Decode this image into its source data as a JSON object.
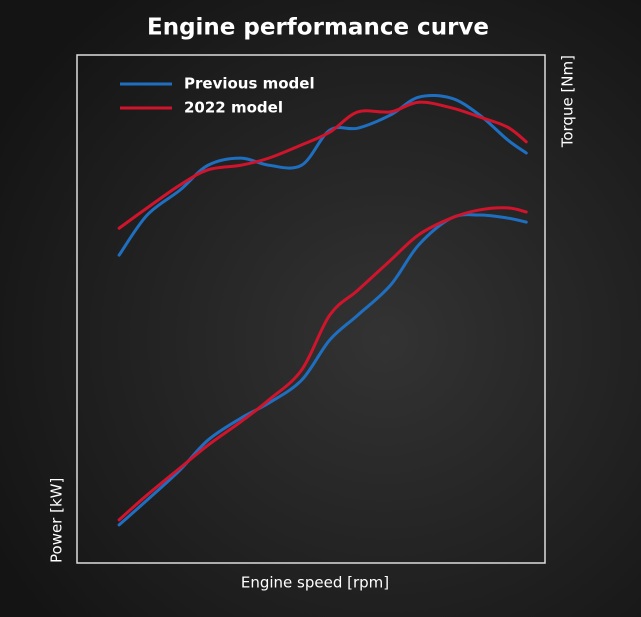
{
  "chart_data": {
    "type": "line",
    "title": "Engine performance curve",
    "x_label": "Engine speed [rpm]",
    "y_label": "Power [kW]",
    "y2_label": "Torque [Nm]",
    "xlim": [
      0,
      100
    ],
    "ylim": [
      0,
      100
    ],
    "x": [
      9,
      15,
      22,
      28,
      35,
      41,
      48,
      54,
      60,
      67,
      73,
      80,
      86,
      92,
      96
    ],
    "legend": "upper left",
    "series": [
      {
        "name": "Previous model",
        "color": "#1f6fc0",
        "torque": [
          60.6,
          68.5,
          73.4,
          78.3,
          79.7,
          78.3,
          78.3,
          85.2,
          85.6,
          88.2,
          91.7,
          91.5,
          88.2,
          83.3,
          80.7
        ],
        "power": [
          7.5,
          12.4,
          18.3,
          24.2,
          28.5,
          31.5,
          36.0,
          43.9,
          48.8,
          54.7,
          62.6,
          67.9,
          68.5,
          67.9,
          67.1
        ]
      },
      {
        "name": "2022 model",
        "color": "#d0142c",
        "torque": [
          65.9,
          69.9,
          74.4,
          77.4,
          78.3,
          79.7,
          82.3,
          84.8,
          88.8,
          88.8,
          90.7,
          89.6,
          87.8,
          85.8,
          82.9
        ],
        "power": [
          8.5,
          13.4,
          18.7,
          23.2,
          27.8,
          32.1,
          38.0,
          48.8,
          53.7,
          59.6,
          64.6,
          67.9,
          69.5,
          69.9,
          69.1
        ]
      }
    ]
  }
}
